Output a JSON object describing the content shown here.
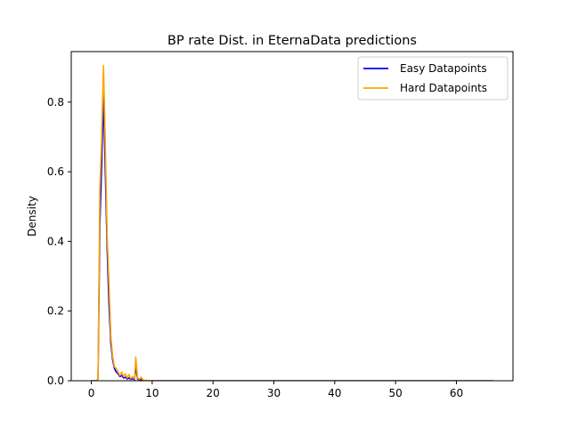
{
  "chart_data": {
    "type": "line",
    "title": "BP rate Dist. in EternaData predictions",
    "xlabel": "",
    "ylabel": "Density",
    "xlim": [
      -3.3,
      69.3
    ],
    "ylim": [
      0,
      0.945
    ],
    "xticks": [
      0,
      10,
      20,
      30,
      40,
      50,
      60
    ],
    "yticks": [
      0.0,
      0.2,
      0.4,
      0.6,
      0.8
    ],
    "ytick_labels": [
      "0.0",
      "0.2",
      "0.4",
      "0.6",
      "0.8"
    ],
    "grid": false,
    "legend_position": "top-right",
    "series": [
      {
        "name": "Easy Datapoints",
        "color": "#0000ff",
        "x": [
          0,
          0.8,
          1.1,
          1.4,
          1.7,
          2.0,
          2.3,
          2.6,
          2.9,
          3.2,
          3.5,
          3.8,
          4.1,
          4.4,
          4.7,
          5.0,
          5.3,
          5.6,
          5.9,
          6.2,
          6.5,
          6.8,
          7.1,
          7.3,
          7.6,
          7.9,
          8.2,
          8.5,
          9,
          10,
          15,
          20,
          30,
          40,
          50,
          60,
          66
        ],
        "y": [
          0,
          0.0,
          0.005,
          0.45,
          0.62,
          0.82,
          0.6,
          0.38,
          0.22,
          0.11,
          0.06,
          0.035,
          0.025,
          0.02,
          0.012,
          0.015,
          0.008,
          0.01,
          0.005,
          0.008,
          0.004,
          0.006,
          0.003,
          0.04,
          0.005,
          0.002,
          0.004,
          0.001,
          0.0,
          0.0,
          0.0,
          0.0,
          0.0,
          0.0,
          0.0,
          0.0,
          0.0
        ]
      },
      {
        "name": "Hard Datapoints",
        "color": "#ffa500",
        "x": [
          0,
          0.8,
          1.1,
          1.4,
          1.7,
          2.0,
          2.3,
          2.6,
          2.9,
          3.2,
          3.5,
          3.8,
          4.1,
          4.4,
          4.7,
          5.0,
          5.3,
          5.6,
          5.9,
          6.2,
          6.5,
          6.8,
          7.1,
          7.3,
          7.6,
          7.9,
          8.2,
          8.5,
          9,
          10,
          15,
          20,
          30,
          40,
          50,
          60,
          66
        ],
        "y": [
          0,
          0.0,
          0.005,
          0.55,
          0.7,
          0.905,
          0.68,
          0.42,
          0.28,
          0.13,
          0.07,
          0.04,
          0.035,
          0.025,
          0.015,
          0.025,
          0.012,
          0.02,
          0.008,
          0.018,
          0.006,
          0.012,
          0.005,
          0.068,
          0.008,
          0.004,
          0.01,
          0.002,
          0.001,
          0.0,
          0.0,
          0.0,
          0.0,
          0.0,
          0.0,
          0.0,
          0.0
        ]
      }
    ]
  }
}
